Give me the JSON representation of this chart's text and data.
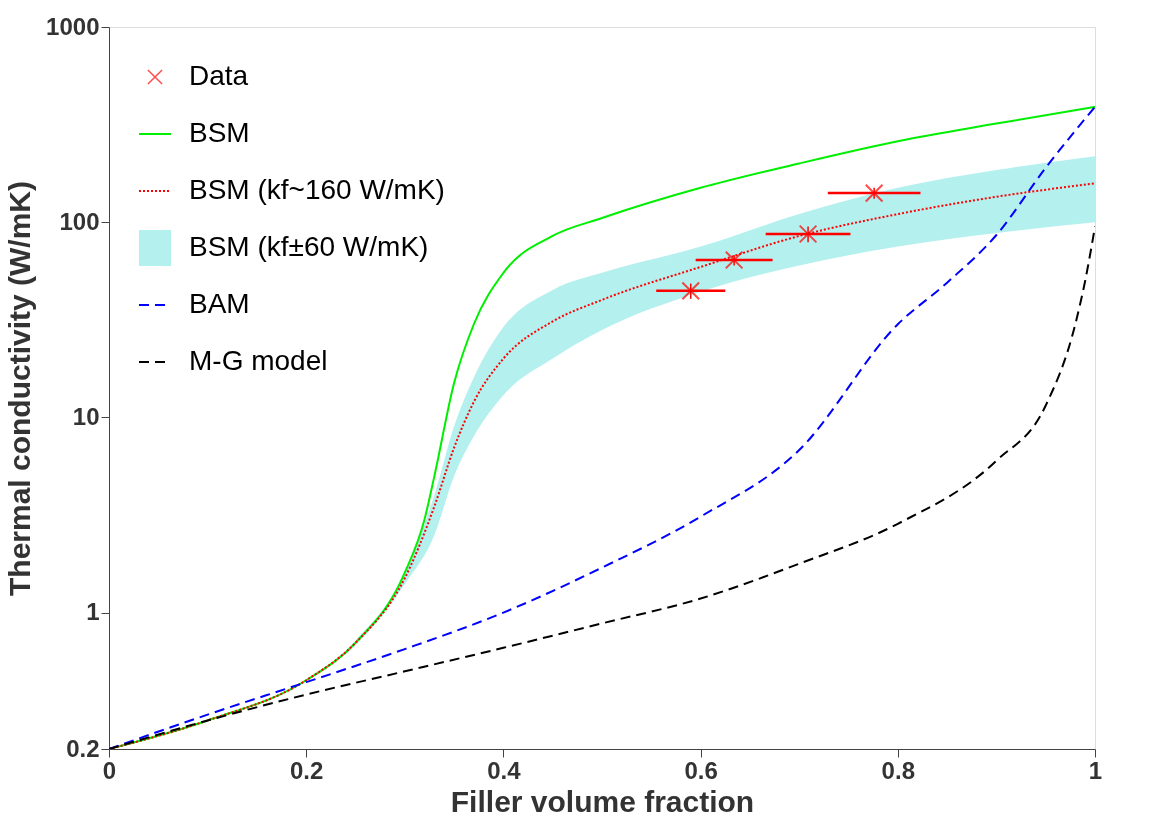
{
  "chart_data": {
    "type": "line",
    "xlabel": "Filler volume fraction",
    "ylabel": "Thermal conductivity (W/mK)",
    "xlim": [
      0,
      1
    ],
    "xticks": [
      0,
      0.2,
      0.4,
      0.6,
      0.8,
      1
    ],
    "ylim": [
      0.2,
      1000
    ],
    "yticks": [
      0.2,
      1,
      10,
      100,
      1000
    ],
    "log": "y",
    "grid": false,
    "legend": "top left",
    "series": [
      {
        "name": "Data",
        "type": "scatter",
        "marker": "cross",
        "color": "#ff0000",
        "x": [
          0.59,
          0.634,
          0.709,
          0.776
        ],
        "values": [
          44.5,
          64,
          87,
          141
        ],
        "errors": [
          4,
          4,
          8,
          9
        ],
        "xerrors": [
          0.035,
          0.039,
          0.043,
          0.047
        ]
      },
      {
        "name": "BSM",
        "line_style": "solid",
        "color": "#00ee00",
        "x": [
          0,
          0.1,
          0.2,
          0.25,
          0.3,
          0.32,
          0.33,
          0.35,
          0.37,
          0.4,
          0.45,
          0.5,
          0.6,
          0.7,
          0.8,
          0.9,
          1.0
        ],
        "values": [
          0.2,
          0.28,
          0.45,
          0.7,
          1.6,
          3,
          5,
          15,
          30,
          55,
          85,
          105,
          150,
          200,
          260,
          320,
          390
        ]
      },
      {
        "name": "BSM (kf~160 W/mK)",
        "line_style": "dotted",
        "color": "#ff0000",
        "x": [
          0,
          0.1,
          0.2,
          0.25,
          0.3,
          0.33,
          0.35,
          0.37,
          0.4,
          0.45,
          0.5,
          0.6,
          0.7,
          0.8,
          0.9,
          1.0
        ],
        "values": [
          0.2,
          0.28,
          0.45,
          0.7,
          1.5,
          3.5,
          7,
          12,
          20,
          31,
          40,
          59,
          85,
          110,
          135,
          158
        ],
        "lower": [
          0.2,
          0.28,
          0.45,
          0.68,
          1.4,
          2.5,
          5,
          8,
          13,
          20,
          28,
          44,
          60,
          75,
          88,
          100
        ],
        "upper": [
          0.2,
          0.28,
          0.45,
          0.72,
          1.6,
          4,
          9,
          16,
          29,
          45,
          55,
          75,
          110,
          150,
          185,
          218
        ]
      },
      {
        "name": "BSM (kf±60 W/mK)",
        "type": "area",
        "color": "#b3f0ee"
      },
      {
        "name": "BAM",
        "line_style": "dashed",
        "color": "#0000ff",
        "x": [
          0,
          0.1,
          0.2,
          0.3,
          0.4,
          0.5,
          0.6,
          0.7,
          0.8,
          0.85,
          0.9,
          0.95,
          1.0
        ],
        "values": [
          0.2,
          0.3,
          0.44,
          0.65,
          1.0,
          1.7,
          3.1,
          6.8,
          30,
          49,
          86,
          190,
          390
        ]
      },
      {
        "name": "M-G model",
        "line_style": "dashed",
        "color": "#000000",
        "x": [
          0,
          0.1,
          0.2,
          0.3,
          0.4,
          0.5,
          0.6,
          0.7,
          0.8,
          0.9,
          0.95,
          0.98,
          0.99,
          1.0
        ],
        "values": [
          0.2,
          0.28,
          0.38,
          0.5,
          0.66,
          0.88,
          1.18,
          1.78,
          2.85,
          6,
          11.5,
          30,
          50,
          95
        ]
      }
    ]
  }
}
